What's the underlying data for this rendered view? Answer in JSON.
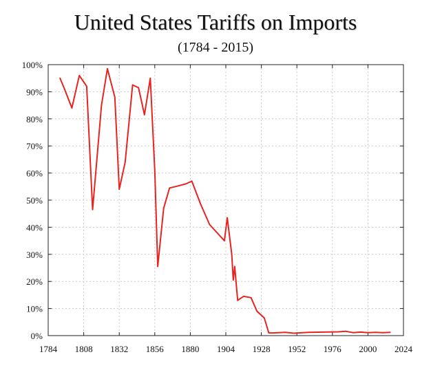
{
  "chart_data": {
    "type": "line",
    "title": "United States Tariffs on Imports",
    "subtitle": "(1784 - 2015)",
    "xlabel": "",
    "ylabel": "",
    "xlim": [
      1784,
      2024
    ],
    "ylim": [
      0,
      100
    ],
    "x_ticks": [
      "1784",
      "1808",
      "1832",
      "1856",
      "1880",
      "1904",
      "1928",
      "1952",
      "1976",
      "2000",
      "2024"
    ],
    "y_ticks": [
      "0%",
      "10%",
      "20%",
      "30%",
      "40%",
      "50%",
      "60%",
      "70%",
      "80%",
      "90%",
      "100%"
    ],
    "grid": true,
    "line_color": "#e8231f",
    "series": [
      {
        "points": [
          [
            1792,
            95
          ],
          [
            1795,
            91
          ],
          [
            1800,
            84
          ],
          [
            1805,
            96
          ],
          [
            1810,
            92
          ],
          [
            1814,
            46.5
          ],
          [
            1820,
            85
          ],
          [
            1824,
            98.5
          ],
          [
            1829,
            88
          ],
          [
            1832,
            54
          ],
          [
            1836,
            64
          ],
          [
            1841,
            92.5
          ],
          [
            1845,
            91.5
          ],
          [
            1849,
            81.5
          ],
          [
            1853,
            95
          ],
          [
            1856,
            61
          ],
          [
            1858,
            25.5
          ],
          [
            1862,
            47
          ],
          [
            1866,
            54.5
          ],
          [
            1870,
            55
          ],
          [
            1877,
            56
          ],
          [
            1881,
            57
          ],
          [
            1887,
            48.5
          ],
          [
            1893,
            41
          ],
          [
            1903,
            35
          ],
          [
            1905,
            43.5
          ],
          [
            1908,
            30
          ],
          [
            1909,
            20.5
          ],
          [
            1910,
            25.5
          ],
          [
            1912,
            13
          ],
          [
            1916,
            14.5
          ],
          [
            1921,
            14
          ],
          [
            1925,
            9
          ],
          [
            1930,
            6.5
          ],
          [
            1933,
            1
          ],
          [
            1936,
            1
          ],
          [
            1944,
            1.2
          ],
          [
            1950,
            0.9
          ],
          [
            1960,
            1.2
          ],
          [
            1970,
            1.3
          ],
          [
            1980,
            1.4
          ],
          [
            1985,
            1.6
          ],
          [
            1990,
            1.1
          ],
          [
            1995,
            1.3
          ],
          [
            2000,
            1.1
          ],
          [
            2005,
            1.2
          ],
          [
            2010,
            1.1
          ],
          [
            2015,
            1.2
          ]
        ]
      }
    ]
  }
}
